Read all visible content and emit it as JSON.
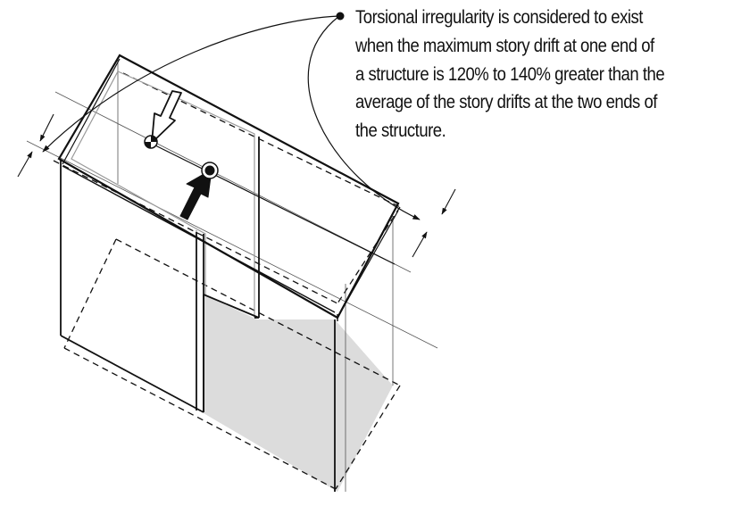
{
  "annotation": {
    "lines": [
      "Torsional irregularity is considered to exist",
      "when the maximum story drift at one end of",
      "a structure is 120% to 140% greater than the",
      "average of the story drifts at the two ends of",
      "the structure."
    ]
  },
  "colors": {
    "line": "#111111",
    "shade": "#dcdcdc",
    "thin": "#555555",
    "inner_outline": "#9a9a9a"
  },
  "icons": {
    "applied_force_arrow": "solid-black-arrow",
    "resistance_arrow": "hollow-white-arrow",
    "center_of_mass": "target-dot",
    "center_of_rigidity": "target-dot"
  }
}
